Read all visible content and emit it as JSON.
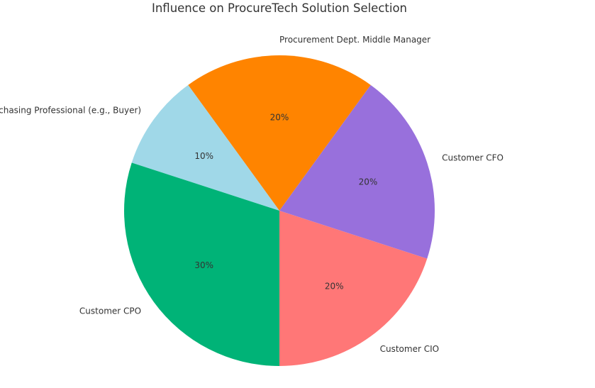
{
  "chart_data": {
    "type": "pie",
    "title": "Influence on ProcureTech Solution Selection",
    "slices": [
      {
        "label": "Procurement Dept. Middle Manager",
        "value": 20,
        "pct_label": "20%",
        "color": "#ff8400"
      },
      {
        "label": "Purchasing Professional (e.g., Buyer)",
        "value": 10,
        "pct_label": "10%",
        "color": "#a0d8e8"
      },
      {
        "label": "Customer CPO",
        "value": 30,
        "pct_label": "30%",
        "color": "#00b377"
      },
      {
        "label": "Customer CIO",
        "value": 20,
        "pct_label": "20%",
        "color": "#ff7777"
      },
      {
        "label": "Customer CFO",
        "value": 20,
        "pct_label": "20%",
        "color": "#9870dc"
      }
    ],
    "start_angle_deg": 54,
    "direction": "counterclockwise",
    "legend": "none"
  }
}
